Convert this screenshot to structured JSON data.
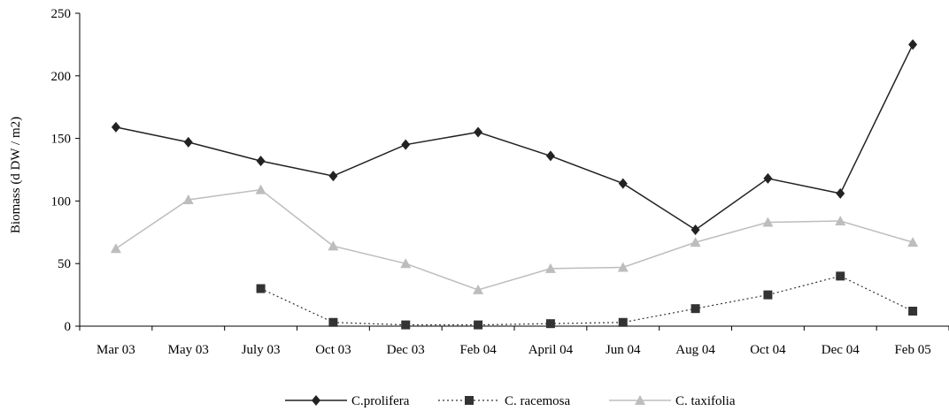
{
  "chart_data": {
    "type": "line",
    "title": "",
    "xlabel": "",
    "ylabel": "Biomass (d DW / m2)",
    "ylim": [
      0,
      250
    ],
    "yticks": [
      0,
      50,
      100,
      150,
      200,
      250
    ],
    "grid": false,
    "legend_position": "bottom",
    "categories": [
      "Mar 03",
      "May 03",
      "July 03",
      "Oct 03",
      "Dec 03",
      "Feb 04",
      "April 04",
      "Jun 04",
      "Aug 04",
      "Oct 04",
      "Dec 04",
      "Feb 05"
    ],
    "series": [
      {
        "name": "C.prolifera",
        "color": "#222222",
        "line_style": "solid",
        "marker": "diamond",
        "values": [
          159,
          147,
          132,
          120,
          145,
          155,
          136,
          114,
          77,
          118,
          106,
          225
        ]
      },
      {
        "name": "C. racemosa",
        "color": "#333333",
        "line_style": "dotted",
        "marker": "square",
        "values": [
          null,
          null,
          30,
          3,
          1,
          1,
          2,
          3,
          14,
          25,
          40,
          12
        ]
      },
      {
        "name": "C. taxifolia",
        "color": "#bdbdbd",
        "line_style": "solid",
        "marker": "triangle",
        "values": [
          62,
          101,
          109,
          64,
          50,
          29,
          46,
          47,
          67,
          83,
          84,
          67
        ]
      }
    ]
  }
}
